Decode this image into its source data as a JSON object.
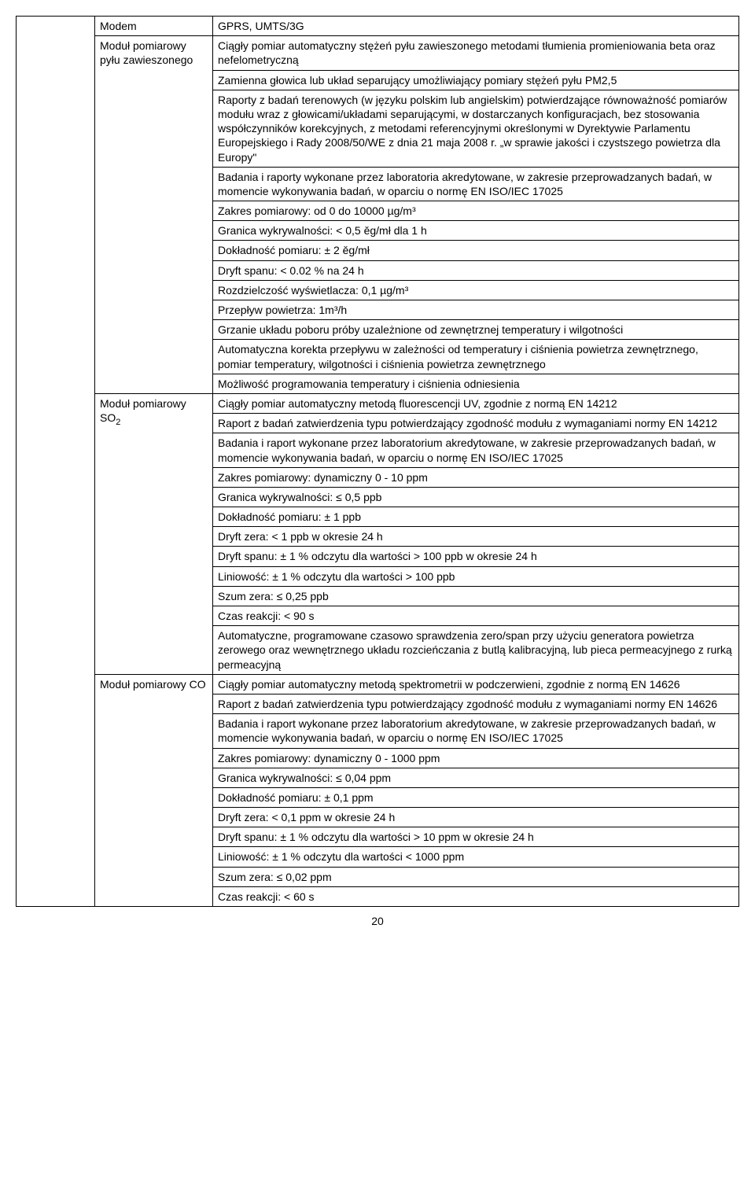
{
  "pageNumber": "20",
  "sections": {
    "modem": {
      "label": "Modem",
      "content": "GPRS, UMTS/3G"
    },
    "pylu": {
      "label": "Moduł pomiarowy pyłu zawieszonego",
      "rows": [
        "Ciągły pomiar automatyczny stężeń pyłu zawieszonego metodami tłumienia promieniowania beta oraz nefelometryczną",
        "Zamienna głowica lub układ separujący umożliwiający pomiary stężeń pyłu PM2,5",
        "Raporty z badań terenowych (w języku polskim lub angielskim) potwierdzające równoważność pomiarów modułu wraz z głowicami/układami separującymi, w dostarczanych konfiguracjach, bez stosowania współczynników korekcyjnych, z metodami referencyjnymi określonymi w Dyrektywie Parlamentu Europejskiego i Rady 2008/50/WE z dnia 21 maja 2008 r. „w sprawie jakości i czystszego powietrza dla Europy\"",
        "Badania i raporty wykonane przez laboratoria akredytowane, w zakresie przeprowadzanych badań, w momencie wykonywania badań, w oparciu o normę EN ISO/IEC 17025",
        "Zakres pomiarowy: od 0 do 10000 µg/m³",
        "Granica wykrywalności: < 0,5 ěg/mł dla 1 h",
        "Dokładność pomiaru: ± 2 ěg/mł",
        "Dryft spanu: < 0.02 % na 24 h",
        "Rozdzielczość wyświetlacza: 0,1 µg/m³",
        "Przepływ powietrza: 1m³/h",
        "Grzanie układu poboru próby uzależnione od zewnętrznej temperatury i wilgotności",
        "Automatyczna korekta przepływu w zależności od temperatury i ciśnienia powietrza zewnętrznego, pomiar temperatury, wilgotności i ciśnienia powietrza zewnętrznego",
        "Możliwość programowania temperatury i ciśnienia odniesienia"
      ]
    },
    "so2": {
      "labelPrefix": "Moduł pomiarowy SO",
      "labelSub": "2",
      "rows": [
        "Ciągły pomiar automatyczny metodą fluorescencji UV, zgodnie z normą EN 14212",
        "Raport z badań zatwierdzenia typu potwierdzający zgodność modułu z wymaganiami normy EN 14212",
        "Badania i raport wykonane przez laboratorium akredytowane, w zakresie przeprowadzanych badań, w momencie wykonywania badań, w oparciu o normę EN ISO/IEC 17025",
        "Zakres pomiarowy: dynamiczny 0 - 10 ppm",
        "Granica wykrywalności: ≤ 0,5 ppb",
        "Dokładność pomiaru: ± 1 ppb",
        "Dryft zera: < 1 ppb w okresie 24 h",
        "Dryft spanu: ± 1 % odczytu dla wartości > 100 ppb w okresie 24 h",
        "Liniowość: ± 1 %  odczytu dla wartości  > 100 ppb",
        "Szum zera: ≤ 0,25 ppb",
        "Czas reakcji: < 90 s",
        "Automatyczne, programowane czasowo sprawdzenia zero/span przy użyciu generatora powietrza zerowego oraz wewnętrznego układu rozcieńczania z butlą kalibracyjną, lub pieca permeacyjnego z rurką permeacyjną"
      ]
    },
    "co": {
      "label": "Moduł pomiarowy CO",
      "rows": [
        "Ciągły pomiar automatyczny metodą spektrometrii w podczerwieni, zgodnie z normą EN 14626",
        "Raport z badań zatwierdzenia typu potwierdzający zgodność modułu z wymaganiami normy EN 14626",
        "Badania i raport wykonane przez laboratorium akredytowane, w zakresie przeprowadzanych badań, w momencie wykonywania badań, w oparciu o normę EN ISO/IEC 17025",
        "Zakres pomiarowy: dynamiczny 0 - 1000 ppm",
        "Granica wykrywalności: ≤ 0,04 ppm",
        "Dokładność pomiaru: ± 0,1 ppm",
        "Dryft zera: < 0,1 ppm w okresie 24 h",
        "Dryft spanu: ± 1 % odczytu dla wartości > 10 ppm w okresie 24 h",
        "Liniowość: ± 1 %  odczytu dla wartości  < 1000 ppm",
        "Szum zera: ≤ 0,02 ppm",
        "Czas reakcji: < 60 s"
      ]
    }
  }
}
